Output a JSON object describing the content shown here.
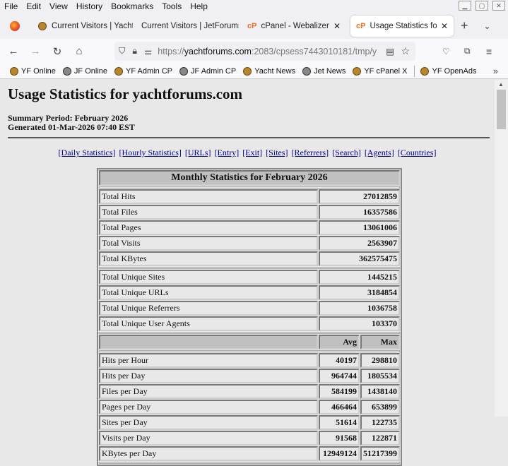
{
  "menu": [
    "File",
    "Edit",
    "View",
    "History",
    "Bookmarks",
    "Tools",
    "Help"
  ],
  "tabs": [
    {
      "label": "Current Visitors | Yacht",
      "icon": "yf-favicon"
    },
    {
      "label": "Current Visitors | JetForums",
      "icon": "none"
    },
    {
      "label": "cPanel - Webalizer",
      "icon": "cpanel-icon"
    },
    {
      "label": "Usage Statistics for yachtforums",
      "icon": "cpanel-icon",
      "active": true
    }
  ],
  "url": {
    "prefix": "https://",
    "domain": "yachtforums.com",
    "rest": ":2083/cpsess7443010181/tmp/y"
  },
  "bookmarks": [
    {
      "label": "YF Online",
      "icon": "yf"
    },
    {
      "label": "JF Online",
      "icon": "jf"
    },
    {
      "label": "YF Admin CP",
      "icon": "yf"
    },
    {
      "label": "JF Admin CP",
      "icon": "jf"
    },
    {
      "label": "Yacht News",
      "icon": "yf"
    },
    {
      "label": "Jet News",
      "icon": "jf"
    },
    {
      "label": "YF cPanel X",
      "icon": "yf"
    },
    {
      "label": "YF OpenAds",
      "icon": "yf"
    }
  ],
  "page": {
    "title": "Usage Statistics for yachtforums.com",
    "summary_period": "Summary Period: February 2026",
    "generated": "Generated 01-Mar-2026 07:40 EST",
    "links": [
      "[Daily Statistics]",
      "[Hourly Statistics]",
      "[URLs]",
      "[Entry]",
      "[Exit]",
      "[Sites]",
      "[Referrers]",
      "[Search]",
      "[Agents]",
      "[Countries]"
    ]
  },
  "stats": {
    "title": "Monthly Statistics for February 2026",
    "totals": [
      [
        "Total Hits",
        "27012859"
      ],
      [
        "Total Files",
        "16357586"
      ],
      [
        "Total Pages",
        "13061006"
      ],
      [
        "Total Visits",
        "2563907"
      ],
      [
        "Total KBytes",
        "362575475"
      ]
    ],
    "unique": [
      [
        "Total Unique Sites",
        "1445215"
      ],
      [
        "Total Unique URLs",
        "3184854"
      ],
      [
        "Total Unique Referrers",
        "1036758"
      ],
      [
        "Total Unique User Agents",
        "103370"
      ]
    ],
    "avg_label": "Avg",
    "max_label": "Max",
    "rates": [
      [
        "Hits per Hour",
        "40197",
        "298810"
      ],
      [
        "Hits per Day",
        "964744",
        "1805534"
      ],
      [
        "Files per Day",
        "584199",
        "1438140"
      ],
      [
        "Pages per Day",
        "466464",
        "653899"
      ],
      [
        "Sites per Day",
        "51614",
        "122735"
      ],
      [
        "Visits per Day",
        "91568",
        "122871"
      ],
      [
        "KBytes per Day",
        "12949124",
        "51217399"
      ]
    ]
  }
}
